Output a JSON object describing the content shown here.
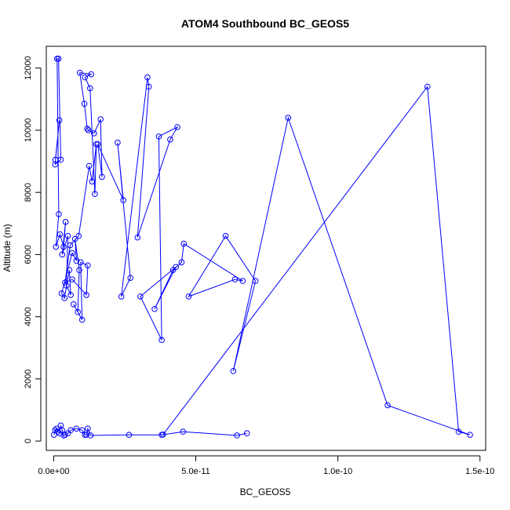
{
  "chart_data": {
    "type": "line",
    "title": "ATOM4 Southbound BC_GEOS5",
    "xlabel": "BC_GEOS5",
    "ylabel": "Altitude (m)",
    "xlim": [
      -2.6e-12,
      1.52e-10
    ],
    "ylim": [
      -300,
      12700
    ],
    "xticks": [
      0,
      5e-11,
      1e-10,
      1.5e-10
    ],
    "xtick_labels": [
      "0.0e+00",
      "5.0e-11",
      "1.0e-10",
      "1.5e-10"
    ],
    "yticks": [
      0,
      2000,
      4000,
      6000,
      8000,
      10000,
      12000
    ],
    "ytick_labels": [
      "0",
      "2000",
      "4000",
      "6000",
      "8000",
      "10000",
      "12000"
    ],
    "color": "#0000ff",
    "marker": "open-circle",
    "series": [
      {
        "name": "",
        "x": [
          6e-13,
          2e-12,
          5e-13,
          2.5e-12,
          1.7e-12,
          1.2e-12,
          1.8e-12,
          8e-13,
          2.2e-12,
          3.5e-12,
          4.2e-12,
          3e-12,
          5e-12,
          4.5e-12,
          6e-12,
          5.5e-12,
          3.8e-12,
          2.8e-12,
          6.5e-12,
          8e-12,
          7.5e-12,
          9e-12,
          8.5e-12,
          7e-12,
          1e-11,
          9.5e-12,
          1.2e-11,
          1.15e-11,
          6.5e-12,
          4e-12,
          5.8e-12,
          8.8e-12,
          1.25e-11,
          1.35e-11,
          1.5e-11,
          1.45e-11,
          1.28e-11,
          1.1e-11,
          1.32e-11,
          9.2e-12,
          1.08e-11,
          1.18e-11,
          1.22e-11,
          1.42e-11,
          1.65e-11,
          1.7e-11,
          1.55e-11,
          2.45e-11,
          2.25e-11,
          2.7e-11,
          2.38e-11,
          3.3e-11,
          3.35e-11,
          2.95e-11,
          4.1e-11,
          4.35e-11,
          3.7e-11,
          3.8e-11,
          3.05e-11,
          4.3e-11,
          3.55e-11,
          4.2e-11,
          4.5e-11,
          4.58e-11,
          6.65e-11,
          6.38e-11,
          4.75e-11,
          6.05e-11,
          7.1e-11,
          6.32e-11,
          8.25e-11,
          1.175e-10,
          1.465e-10,
          1.425e-10,
          1.315e-10,
          3.85e-11
        ],
        "y": [
          9050,
          10320,
          8900,
          9050,
          12300,
          12300,
          7300,
          6250,
          6650,
          6250,
          7050,
          6000,
          6600,
          5000,
          4700,
          5500,
          4600,
          4750,
          6050,
          5800,
          6500,
          5500,
          4150,
          4400,
          3900,
          5750,
          5650,
          4700,
          5200,
          5100,
          6300,
          6600,
          8850,
          8350,
          9550,
          7950,
          11350,
          11700,
          11800,
          11850,
          10850,
          10050,
          10000,
          9900,
          10350,
          8500,
          9550,
          7750,
          9600,
          5250,
          4650,
          11700,
          11400,
          6550,
          9700,
          10100,
          9800,
          3250,
          4650,
          5600,
          4250,
          5500,
          5750,
          6350,
          5150,
          5200,
          4650,
          6600,
          5150,
          2250,
          10400,
          1150,
          200,
          300,
          11400,
          210
        ]
      },
      {
        "name": "",
        "x": [
          1e-13,
          5e-13,
          1e-12,
          1.5e-12,
          2e-12,
          2.5e-12,
          3e-12,
          3.5e-12,
          4e-12,
          5e-12,
          6e-12,
          8e-12,
          1e-11,
          1.1e-11,
          1.15e-11,
          1.2e-11,
          1.3e-11,
          2.65e-11,
          3.8e-11,
          4.55e-11,
          6.45e-11,
          6.8e-11
        ],
        "y": [
          200,
          350,
          400,
          300,
          250,
          500,
          350,
          180,
          200,
          250,
          350,
          400,
          350,
          200,
          200,
          400,
          180,
          200,
          200,
          300,
          180,
          250
        ]
      }
    ]
  }
}
